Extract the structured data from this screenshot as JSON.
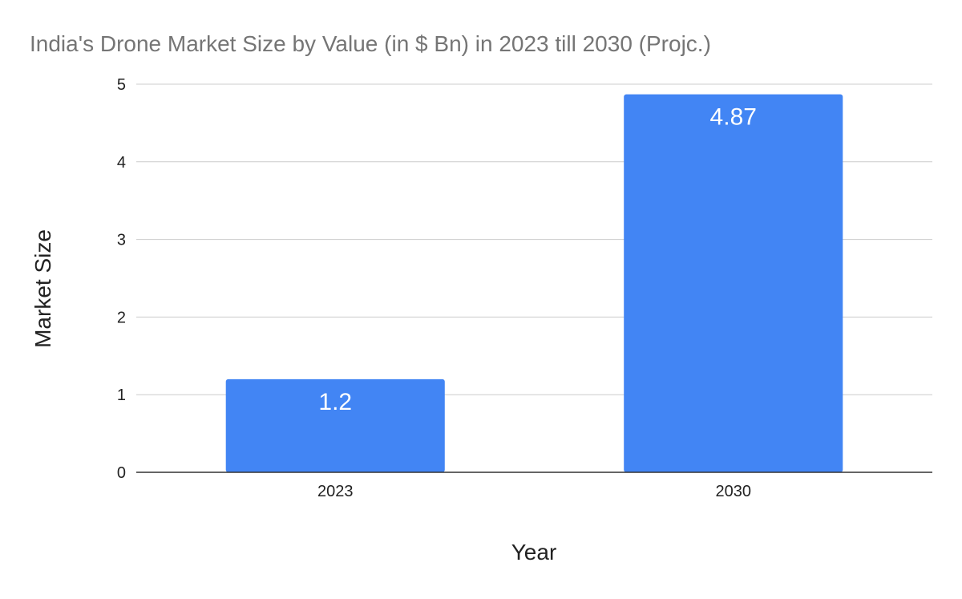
{
  "chart_data": {
    "type": "bar",
    "title": "India's Drone Market Size by Value (in $ Bn) in 2023 till 2030 (Projc.)",
    "xlabel": "Year",
    "ylabel": "Market Size",
    "categories": [
      "2023",
      "2030"
    ],
    "values": [
      1.2,
      4.87
    ],
    "data_labels": [
      "1.2",
      "4.87"
    ],
    "ylim": [
      0,
      5
    ],
    "yticks": [
      0,
      1,
      2,
      3,
      4,
      5
    ],
    "grid": true,
    "legend": "none",
    "colors": {
      "bar": "#4285f4",
      "title": "#757575",
      "text": "#222222",
      "grid": "#cccccc",
      "axis": "#333333",
      "data_label": "#ffffff"
    }
  }
}
